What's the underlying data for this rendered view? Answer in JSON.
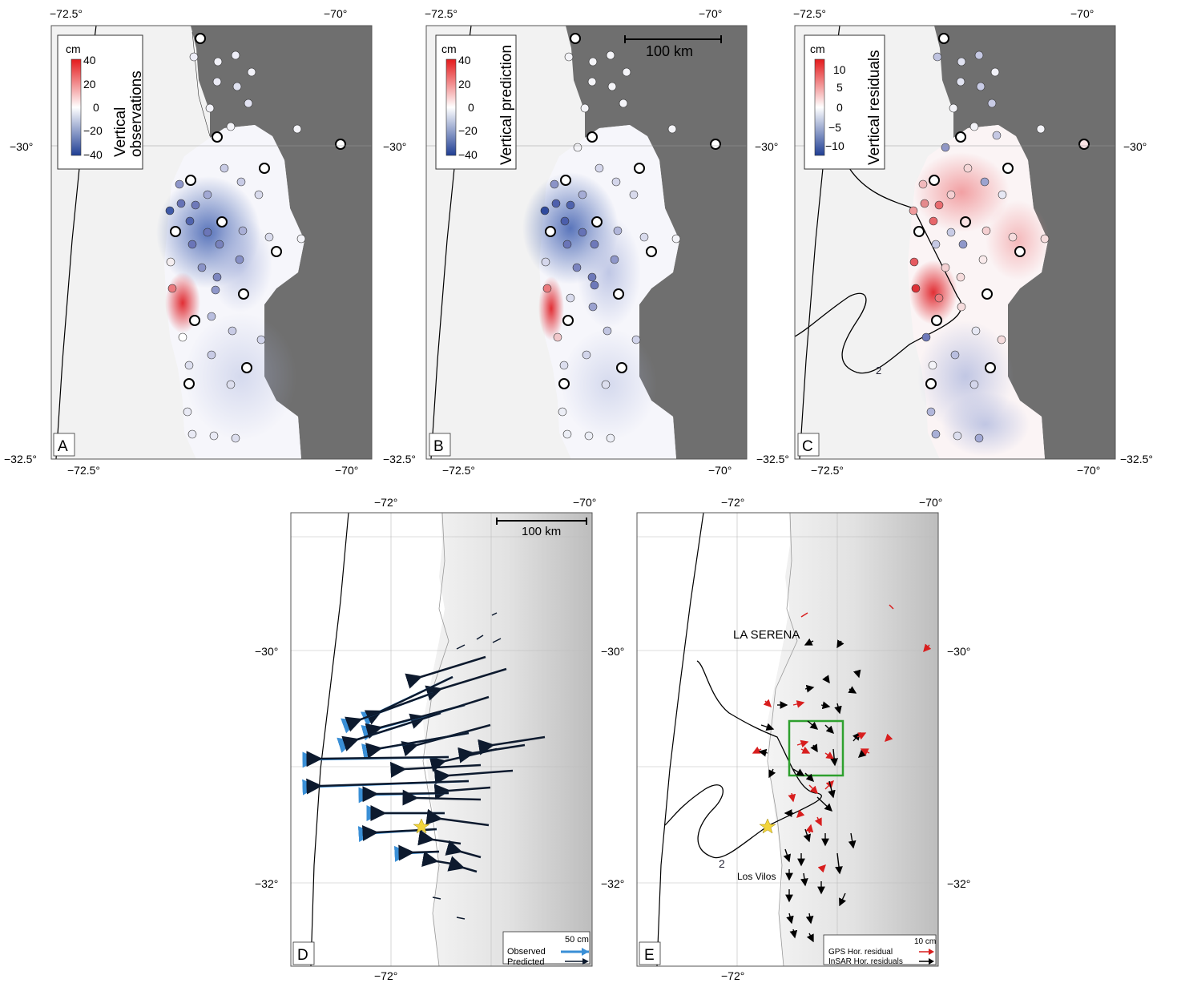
{
  "top_panels": [
    {
      "letter": "A",
      "legend": {
        "unit": "cm",
        "title_lines": [
          "Vertical",
          "observations"
        ],
        "ticks": [
          "40",
          "20",
          "0",
          "−20",
          "−40"
        ]
      },
      "scale_bar": ""
    },
    {
      "letter": "B",
      "legend": {
        "unit": "cm",
        "title_lines": [
          "Vertical prediction"
        ],
        "ticks": [
          "40",
          "20",
          "0",
          "−20",
          "−40"
        ]
      },
      "scale_bar": "100 km"
    },
    {
      "letter": "C",
      "legend": {
        "unit": "cm",
        "title_lines": [
          "Vertical residuals"
        ],
        "ticks": [
          "10",
          "5",
          "0",
          "−5",
          "−10"
        ]
      },
      "scale_bar": "",
      "contour_label": "2"
    }
  ],
  "top_axes": {
    "lon_ticks": [
      "−72.5°",
      "−70°"
    ],
    "lat_ticks": [
      "−30°",
      "−32.5°"
    ]
  },
  "bottom_axes": {
    "lon_ticks": [
      "−72°",
      "−70°"
    ],
    "lat_ticks": [
      "−30°",
      "−32°"
    ]
  },
  "panel_d": {
    "letter": "D",
    "scale_bar": "100 km",
    "legend": {
      "scale": "50 cm",
      "observed": "Observed",
      "predicted": "Predicted"
    }
  },
  "panel_e": {
    "letter": "E",
    "city": "LA SERENA",
    "town": "Los Vilos",
    "contour_label": "2",
    "legend": {
      "scale": "10 cm",
      "gps": "GPS Hor. residual",
      "insar": "InSAR Hor. residuals"
    }
  },
  "colors": {
    "land": "#6f6f6f",
    "ocean": "#f2f2f2",
    "pos": "#d7261e",
    "neg": "#2b4c9b",
    "observed": "#3a8fd6",
    "predicted": "#0d1a2e",
    "gps": "#d81e1e",
    "insar": "#000000",
    "box": "#2ea02e",
    "star": "#f2d43a"
  }
}
